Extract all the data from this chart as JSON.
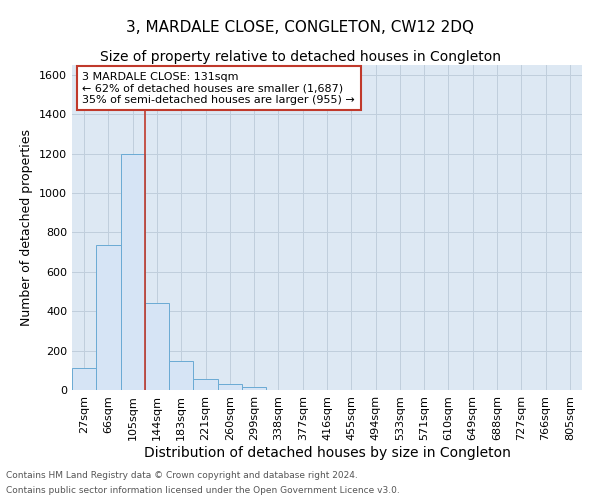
{
  "title": "3, MARDALE CLOSE, CONGLETON, CW12 2DQ",
  "subtitle": "Size of property relative to detached houses in Congleton",
  "xlabel": "Distribution of detached houses by size in Congleton",
  "ylabel": "Number of detached properties",
  "footnote1": "Contains HM Land Registry data © Crown copyright and database right 2024.",
  "footnote2": "Contains public sector information licensed under the Open Government Licence v3.0.",
  "bar_labels": [
    "27sqm",
    "66sqm",
    "105sqm",
    "144sqm",
    "183sqm",
    "221sqm",
    "260sqm",
    "299sqm",
    "338sqm",
    "377sqm",
    "416sqm",
    "455sqm",
    "494sqm",
    "533sqm",
    "571sqm",
    "610sqm",
    "649sqm",
    "688sqm",
    "727sqm",
    "766sqm",
    "805sqm"
  ],
  "bar_values": [
    110,
    735,
    1200,
    440,
    145,
    57,
    30,
    17,
    0,
    0,
    0,
    0,
    0,
    0,
    0,
    0,
    0,
    0,
    0,
    0,
    0
  ],
  "bar_color": "#d6e4f5",
  "bar_edge_color": "#6aaad4",
  "annotation_box_text": "3 MARDALE CLOSE: 131sqm\n← 62% of detached houses are smaller (1,687)\n35% of semi-detached houses are larger (955) →",
  "vline_x": 2.5,
  "vline_color": "#c0392b",
  "ylim": [
    0,
    1650
  ],
  "yticks": [
    0,
    200,
    400,
    600,
    800,
    1000,
    1200,
    1400,
    1600
  ],
  "grid_color": "#c0cedc",
  "background_color": "#dde8f3",
  "annotation_box_color": "white",
  "annotation_box_edge_color": "#c0392b",
  "title_fontsize": 11,
  "subtitle_fontsize": 10,
  "ylabel_fontsize": 9,
  "xlabel_fontsize": 10,
  "tick_fontsize": 8,
  "footnote_fontsize": 6.5
}
